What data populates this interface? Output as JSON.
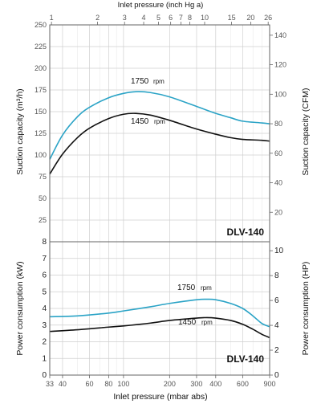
{
  "chart_data": [
    {
      "type": "line",
      "name": "suction",
      "model": "DLV-140",
      "x_axis_top": {
        "title": "Inlet pressure (inch Hg a)",
        "scale": "log",
        "ticks": [
          "1",
          "2",
          "3",
          "4",
          "5",
          "6",
          "7",
          "8",
          "10",
          "15",
          "20",
          "26"
        ]
      },
      "ylabel_left": "Suction capacity (m³/h)",
      "ylim_left": [
        0,
        250
      ],
      "yticks_left": [
        "25",
        "50",
        "75",
        "100",
        "125",
        "150",
        "175",
        "200",
        "225",
        "250"
      ],
      "ylabel_right": "Suction capacity (CFM)",
      "ylim_right": [
        0,
        147
      ],
      "yticks_right": [
        "20",
        "40",
        "60",
        "80",
        "100",
        "120",
        "140"
      ],
      "grid": true,
      "series": [
        {
          "name": "1750",
          "unit": "rpm",
          "color": "#2aa3c6",
          "x": [
            33,
            40,
            50,
            60,
            80,
            100,
            120,
            150,
            200,
            300,
            400,
            500,
            600,
            800,
            900
          ],
          "y": [
            95,
            123,
            144,
            155,
            166,
            171,
            173,
            172,
            167,
            156,
            148,
            143,
            139,
            137,
            136
          ]
        },
        {
          "name": "1450",
          "unit": "rpm",
          "color": "#111111",
          "x": [
            33,
            40,
            50,
            60,
            80,
            100,
            120,
            150,
            200,
            300,
            400,
            500,
            600,
            800,
            900
          ],
          "y": [
            78,
            101,
            120,
            131,
            142,
            147,
            148,
            146,
            140,
            130,
            124,
            120,
            118,
            117,
            116
          ]
        }
      ]
    },
    {
      "type": "line",
      "name": "power",
      "model": "DLV-140",
      "xlabel": "Inlet pressure (mbar abs)",
      "x_scale": "log",
      "xlim": [
        33,
        900
      ],
      "xticks": [
        "33",
        "40",
        "60",
        "80",
        "100",
        "200",
        "300",
        "400",
        "600",
        "900"
      ],
      "ylabel_left": "Power consumption (kW)",
      "ylim_left": [
        0,
        8
      ],
      "yticks_left": [
        "0",
        "1",
        "2",
        "3",
        "4",
        "5",
        "6",
        "7",
        "8"
      ],
      "ylabel_right": "Power consumption (HP)",
      "ylim_right": [
        0,
        10.72
      ],
      "yticks_right": [
        "0",
        "2",
        "4",
        "6",
        "8",
        "10"
      ],
      "grid": true,
      "series": [
        {
          "name": "1750",
          "unit": "rpm",
          "color": "#2aa3c6",
          "x": [
            33,
            50,
            80,
            100,
            150,
            200,
            300,
            350,
            400,
            500,
            600,
            700,
            800,
            900
          ],
          "y": [
            3.5,
            3.55,
            3.72,
            3.85,
            4.1,
            4.3,
            4.52,
            4.55,
            4.52,
            4.3,
            4.0,
            3.55,
            3.1,
            2.9
          ]
        },
        {
          "name": "1450",
          "unit": "rpm",
          "color": "#111111",
          "x": [
            33,
            50,
            80,
            100,
            150,
            200,
            300,
            350,
            400,
            500,
            600,
            700,
            800,
            900
          ],
          "y": [
            2.62,
            2.72,
            2.88,
            2.95,
            3.12,
            3.28,
            3.42,
            3.45,
            3.42,
            3.28,
            3.05,
            2.75,
            2.45,
            2.25
          ]
        }
      ]
    }
  ]
}
